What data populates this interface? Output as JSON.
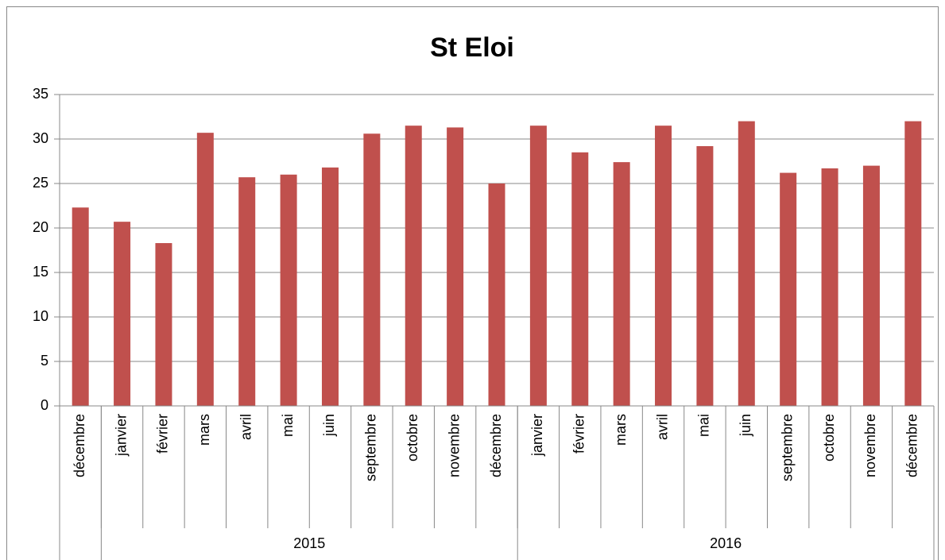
{
  "chart_data": {
    "type": "bar",
    "title": "St Eloi",
    "categories": [
      "décembre",
      "janvier",
      "février",
      "mars",
      "avril",
      "mai",
      "juin",
      "septembre",
      "octobre",
      "novembre",
      "décembre",
      "janvier",
      "février",
      "mars",
      "avril",
      "mai",
      "juin",
      "septembre",
      "octobre",
      "novembre",
      "décembre"
    ],
    "values": [
      22.3,
      20.7,
      18.3,
      30.7,
      25.7,
      26,
      26.8,
      30.6,
      31.5,
      31.3,
      25,
      31.5,
      28.5,
      27.4,
      31.5,
      29.2,
      32,
      26.2,
      26.7,
      27,
      32
    ],
    "group_labels": [
      null,
      "2015",
      "2016"
    ],
    "group_sizes": [
      1,
      10,
      10
    ],
    "color": "#c0504d",
    "ylim": [
      0,
      35
    ],
    "yticks": [
      0,
      5,
      10,
      15,
      20,
      25,
      30,
      35
    ],
    "grid": true
  }
}
